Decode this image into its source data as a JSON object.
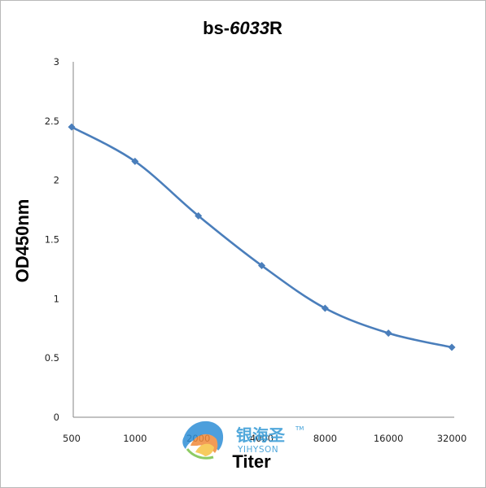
{
  "chart_data": {
    "type": "line",
    "title": {
      "prefix": "bs-",
      "number": "6033",
      "suffix": "R"
    },
    "xlabel": "Titer",
    "ylabel": "OD450nm",
    "categories": [
      "500",
      "1000",
      "2000",
      "4000",
      "8000",
      "16000",
      "32000"
    ],
    "series": [
      {
        "values": [
          2.45,
          2.16,
          1.7,
          1.28,
          0.92,
          0.71,
          0.59
        ],
        "color": "#4a7ebb"
      }
    ],
    "yticks": [
      "0",
      "0.5",
      "1",
      "1.5",
      "2",
      "2.5",
      "3"
    ],
    "ylim": [
      0,
      3
    ],
    "grid": false,
    "legend": "none",
    "marker": "diamond"
  },
  "watermark": {
    "chinese": "银海圣",
    "english": "YIHYSON",
    "trademark": "TM"
  }
}
